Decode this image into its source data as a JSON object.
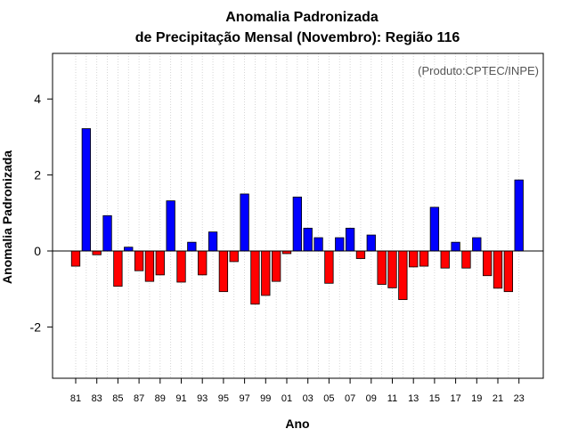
{
  "chart_data": {
    "type": "bar",
    "title_line1": "Anomalia Padronizada",
    "title_line2": "de Precipitação Mensal (Novembro): Região 116",
    "xlabel": "Ano",
    "ylabel": "Anomalia Padronizada",
    "annotation": "(Produto:CPTEC/INPE)",
    "ylim": [
      -3.35,
      5.2
    ],
    "yticks": [
      -2,
      0,
      2,
      4
    ],
    "grid": "vertical dotted",
    "colors": {
      "positive": "#0000ff",
      "negative": "#ff0000",
      "outline": "#000000",
      "grid": "#cccccc"
    },
    "categories": [
      "1981",
      "1982",
      "1983",
      "1984",
      "1985",
      "1986",
      "1987",
      "1988",
      "1989",
      "1990",
      "1991",
      "1992",
      "1993",
      "1994",
      "1995",
      "1996",
      "1997",
      "1998",
      "1999",
      "2000",
      "2001",
      "2002",
      "2003",
      "2004",
      "2005",
      "2006",
      "2007",
      "2008",
      "2009",
      "2010",
      "2011",
      "2012",
      "2013",
      "2014",
      "2015",
      "2016",
      "2017",
      "2018",
      "2019",
      "2020",
      "2021",
      "2022",
      "2023"
    ],
    "tick_labels": [
      "81",
      "83",
      "85",
      "87",
      "89",
      "91",
      "93",
      "95",
      "97",
      "99",
      "01",
      "03",
      "05",
      "07",
      "09",
      "11",
      "13",
      "15",
      "17",
      "19",
      "21",
      "23"
    ],
    "values": [
      -0.4,
      3.22,
      -0.1,
      0.93,
      -0.93,
      0.1,
      -0.52,
      -0.8,
      -0.63,
      1.32,
      -0.82,
      0.23,
      -0.63,
      0.5,
      -1.07,
      -0.28,
      1.5,
      -1.4,
      -1.17,
      -0.8,
      -0.07,
      1.42,
      0.6,
      0.35,
      -0.85,
      0.35,
      0.6,
      -0.2,
      0.42,
      -0.88,
      -0.97,
      -1.28,
      -0.42,
      -0.4,
      1.15,
      -0.45,
      0.23,
      -0.45,
      0.35,
      -0.65,
      -0.98,
      -1.07,
      1.87
    ]
  }
}
